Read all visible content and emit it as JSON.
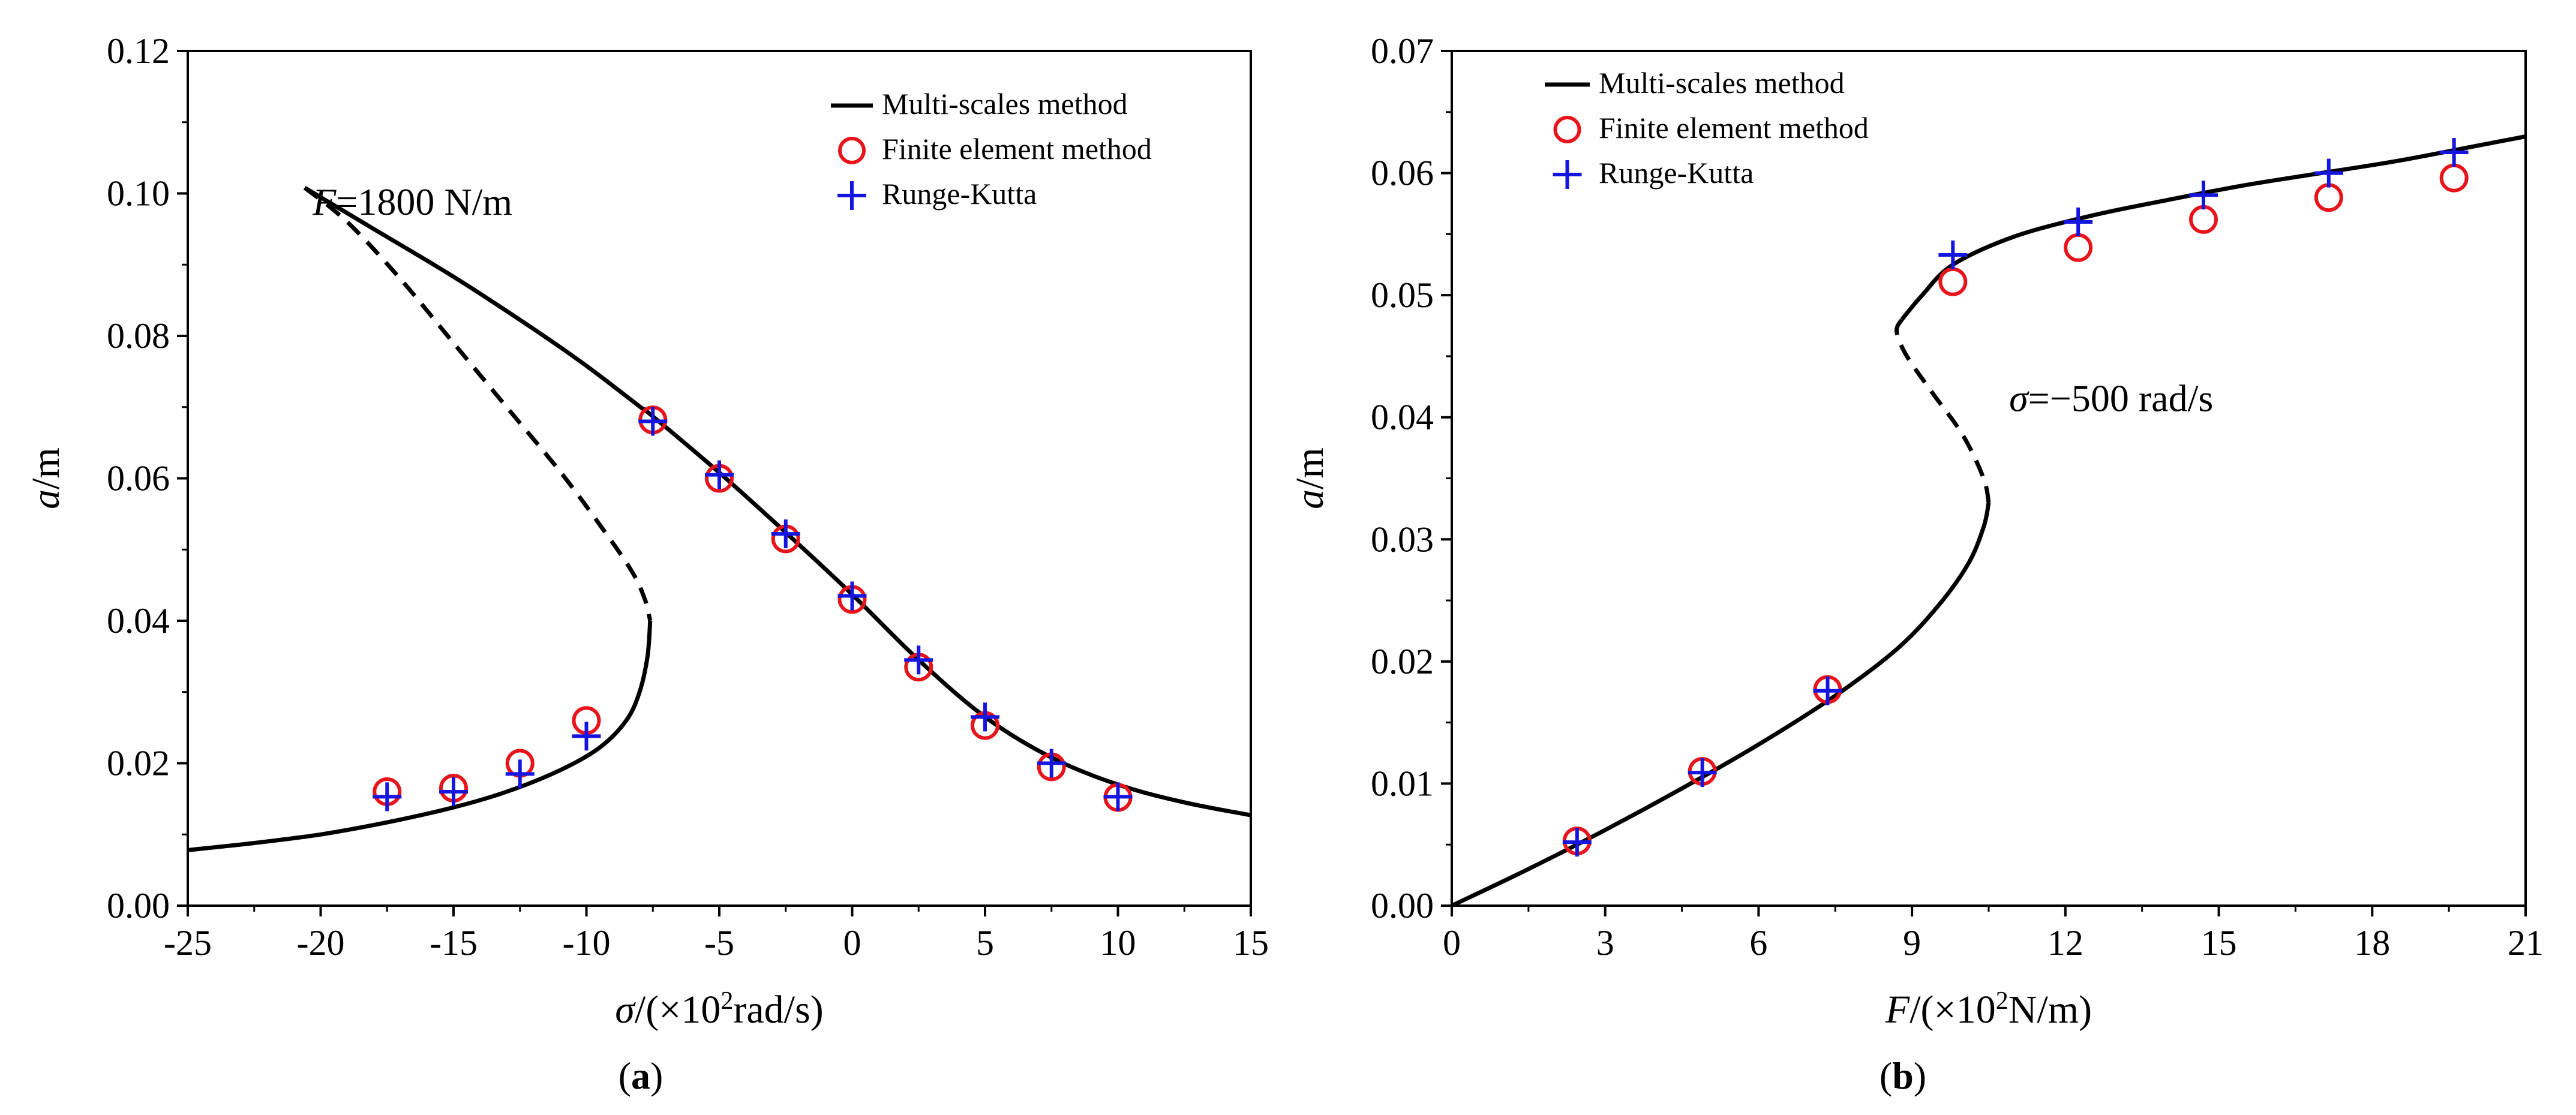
{
  "chart_data": [
    {
      "type": "line",
      "panel_caption": "a",
      "xlabel": {
        "var": "σ",
        "pre": "/(×10",
        "sup": "2",
        "post": "rad/s)"
      },
      "ylabel": {
        "var": "a",
        "post": "/m"
      },
      "xlim": [
        -25,
        15
      ],
      "ylim": [
        0,
        0.12
      ],
      "xticks": [
        -25,
        -20,
        -15,
        -10,
        -5,
        0,
        5,
        10,
        15
      ],
      "xtick_labels": [
        "-25",
        "-20",
        "-15",
        "-10",
        "-5",
        "0",
        "5",
        "10",
        "15"
      ],
      "yticks": [
        0,
        0.02,
        0.04,
        0.06,
        0.08,
        0.1,
        0.12
      ],
      "ytick_labels": [
        "0.00",
        "0.02",
        "0.04",
        "0.06",
        "0.08",
        "0.10",
        "0.12"
      ],
      "annotation": {
        "var": "F",
        "text": "=1800 N/m",
        "x": -20.3,
        "y": 0.097
      },
      "legend": [
        "Multi-scales method",
        "Finite element method",
        "Runge-Kutta"
      ],
      "series": [
        {
          "name": "Multi-scales method (stable upper)",
          "style": "solid",
          "x": [
            -20.6,
            -18.0,
            -15.0,
            -12.0,
            -10.0,
            -8.0,
            -7.6,
            -5.0,
            -2.5,
            0,
            2.5,
            5.0,
            7.5,
            10.0,
            12.5,
            15.0
          ],
          "y": [
            0.1008,
            0.095,
            0.0883,
            0.081,
            0.0758,
            0.0701,
            0.069,
            0.0608,
            0.0524,
            0.0437,
            0.0345,
            0.0265,
            0.0208,
            0.017,
            0.0145,
            0.0127
          ]
        },
        {
          "name": "Multi-scales method (unstable)",
          "style": "dashed",
          "x": [
            -20.6,
            -19.0,
            -17.0,
            -15.0,
            -13.0,
            -11.0,
            -9.5,
            -8.3,
            -7.8,
            -7.6
          ],
          "y": [
            0.1008,
            0.096,
            0.088,
            0.079,
            0.07,
            0.061,
            0.0535,
            0.047,
            0.043,
            0.04
          ]
        },
        {
          "name": "Multi-scales method (stable lower)",
          "style": "solid",
          "x": [
            -7.6,
            -7.7,
            -8.0,
            -8.5,
            -9.5,
            -11.0,
            -13.0,
            -15.0,
            -17.5,
            -20.0,
            -22.5,
            -25.0
          ],
          "y": [
            0.04,
            0.035,
            0.03,
            0.026,
            0.0222,
            0.019,
            0.016,
            0.0138,
            0.0117,
            0.01,
            0.0088,
            0.0078
          ]
        },
        {
          "name": "Finite element method",
          "style": "circle",
          "x": [
            -17.5,
            -15.0,
            -12.5,
            -10.0,
            -7.5,
            -5.0,
            -2.5,
            0,
            2.5,
            5.0,
            7.5,
            10.0
          ],
          "y": [
            0.016,
            0.0165,
            0.02,
            0.026,
            0.0682,
            0.06,
            0.0515,
            0.043,
            0.0335,
            0.0253,
            0.0195,
            0.0152
          ]
        },
        {
          "name": "Runge-Kutta",
          "style": "plus",
          "x": [
            -17.5,
            -15.0,
            -12.5,
            -10.0,
            -7.5,
            -5.0,
            -2.5,
            0,
            2.5,
            5.0,
            7.5,
            10.0
          ],
          "y": [
            0.0153,
            0.016,
            0.0185,
            0.0238,
            0.068,
            0.0605,
            0.0522,
            0.0435,
            0.0345,
            0.0265,
            0.02,
            0.0153
          ]
        }
      ]
    },
    {
      "type": "line",
      "panel_caption": "b",
      "xlabel": {
        "var": "F",
        "pre": "/(×10",
        "sup": "2",
        "post": "N/m)"
      },
      "ylabel": {
        "var": "a",
        "post": "/m"
      },
      "xlim": [
        0,
        21
      ],
      "ylim": [
        0,
        0.07
      ],
      "xticks": [
        0,
        3,
        6,
        9,
        12,
        15,
        18,
        21
      ],
      "xtick_labels": [
        "0",
        "3",
        "6",
        "9",
        "12",
        "15",
        "18",
        "21"
      ],
      "yticks": [
        0,
        0.01,
        0.02,
        0.03,
        0.04,
        0.05,
        0.06,
        0.07
      ],
      "ytick_labels": [
        "0.00",
        "0.01",
        "0.02",
        "0.03",
        "0.04",
        "0.05",
        "0.06",
        "0.07"
      ],
      "annotation": {
        "var": "σ",
        "text": "=−500 rad/s",
        "x": 10.9,
        "y": 0.0405
      },
      "legend": [
        "Multi-scales method",
        "Finite element method",
        "Runge-Kutta"
      ],
      "series": [
        {
          "name": "Multi-scales method (stable lower)",
          "style": "solid",
          "x": [
            0,
            1.5,
            3.0,
            4.5,
            6.0,
            7.5,
            8.7,
            9.5,
            10.1,
            10.4,
            10.5
          ],
          "y": [
            0.0,
            0.003,
            0.0062,
            0.0096,
            0.0132,
            0.0172,
            0.021,
            0.0245,
            0.028,
            0.031,
            0.033
          ]
        },
        {
          "name": "Multi-scales method (unstable)",
          "style": "dashed",
          "x": [
            10.5,
            10.4,
            10.0,
            9.4,
            8.9,
            8.7,
            8.8
          ],
          "y": [
            0.033,
            0.035,
            0.0385,
            0.042,
            0.045,
            0.047,
            0.048
          ]
        },
        {
          "name": "Multi-scales method (stable upper)",
          "style": "solid",
          "x": [
            8.8,
            9.2,
            9.8,
            11.0,
            12.5,
            14.0,
            15.5,
            17.0,
            18.5,
            20.0,
            21.0
          ],
          "y": [
            0.048,
            0.05,
            0.0525,
            0.0548,
            0.0565,
            0.0578,
            0.059,
            0.06,
            0.061,
            0.0622,
            0.063
          ]
        },
        {
          "name": "Finite element method",
          "style": "circle",
          "x": [
            2.45,
            4.9,
            7.35,
            9.8,
            12.25,
            14.7,
            17.15,
            19.6
          ],
          "y": [
            0.0053,
            0.011,
            0.0177,
            0.0511,
            0.0539,
            0.0562,
            0.058,
            0.0596
          ]
        },
        {
          "name": "Runge-Kutta",
          "style": "plus",
          "x": [
            2.45,
            4.9,
            7.35,
            9.8,
            12.25,
            14.7,
            17.15,
            19.6
          ],
          "y": [
            0.0052,
            0.0109,
            0.0176,
            0.0533,
            0.056,
            0.0582,
            0.06,
            0.0617
          ]
        }
      ]
    }
  ],
  "colors": {
    "line": "#000000",
    "fem": "#e8141b",
    "rk": "#1515e0"
  }
}
